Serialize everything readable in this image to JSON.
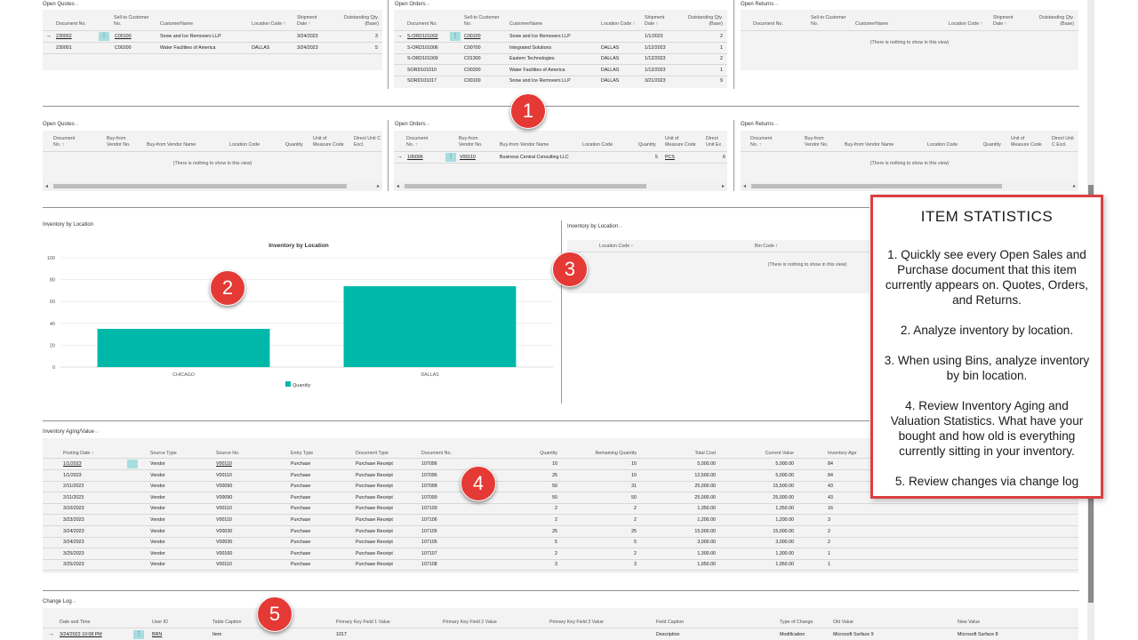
{
  "open_quotes_sales": {
    "title": "Open Quotes",
    "headers": [
      "Document No.",
      "Sell-to Customer No.",
      "CustomerName",
      "Location Code ↑",
      "Shipment Date ↑",
      "Outstanding Qty. (Base)"
    ],
    "rows": [
      [
        "230002",
        "C00100",
        "Snow and Ice Removers LLP",
        "",
        "3/24/2023",
        "3"
      ],
      [
        "230001",
        "C00200",
        "Water Facilities of America",
        "DALLAS",
        "3/24/2023",
        "5"
      ]
    ]
  },
  "open_orders_sales": {
    "title": "Open Orders",
    "headers": [
      "Document No.",
      "Sell-to Customer No.",
      "CustomerName",
      "Location Code ↑",
      "Shipment Date ↑",
      "Outstanding Qty. (Base)"
    ],
    "rows": [
      [
        "S-ORD101002",
        "C00100",
        "Snow and Ice Removers LLP",
        "",
        "1/1/2023",
        "2"
      ],
      [
        "S-ORD101006",
        "C00700",
        "Integrated Solutions",
        "DALLAS",
        "1/12/2023",
        "1"
      ],
      [
        "S-ORD101009",
        "C01300",
        "Eastern Technologies",
        "DALLAS",
        "1/12/2023",
        "2"
      ],
      [
        "SORD101010",
        "C00200",
        "Water Facilities of America",
        "DALLAS",
        "1/12/2023",
        "1"
      ],
      [
        "SORD101017",
        "C00100",
        "Snow and Ice Removers LLP",
        "DALLAS",
        "3/21/2023",
        "9"
      ]
    ]
  },
  "open_returns_sales": {
    "title": "Open Returns",
    "headers": [
      "Document No.",
      "Sell-to Customer No.",
      "CustomerName",
      "Location Code ↑",
      "Shipment Date ↑",
      "Outstanding Qty. (Base)"
    ],
    "empty": "(There is nothing to show in this view)"
  },
  "open_quotes_purch": {
    "title": "Open Quotes",
    "headers": [
      "Document No. ↑",
      "Buy-from Vendor No.",
      "Buy-from Vendor Name",
      "Location Code",
      "Quantity",
      "Unit of Measure Code",
      "Direct Unit C Excl."
    ],
    "empty": "(There is nothing to show in this view)"
  },
  "open_orders_purch": {
    "title": "Open Orders",
    "headers": [
      "Document No. ↑",
      "Buy-from Vendor No.",
      "Buy-from Vendor Name",
      "Location Code",
      "Quantity",
      "Unit of Measure Code",
      "Direct Unit Ex"
    ],
    "rows": [
      [
        "106006",
        "V00110",
        "Business Central Consulting LLC",
        "",
        "5",
        "PCS",
        "6"
      ]
    ]
  },
  "open_returns_purch": {
    "title": "Open Returns",
    "headers": [
      "Document No. ↑",
      "Buy-from Vendor No.",
      "Buy-from Vendor Name",
      "Location Code",
      "Quantity",
      "Unit of Measure Code",
      "Direct Unit C Excl."
    ],
    "empty": "(There is nothing to show in this view)"
  },
  "inventory_chart": {
    "section_title": "Inventory by Location",
    "legend_label": "Quantity"
  },
  "chart_data": {
    "type": "bar",
    "title": "Inventory by Location",
    "categories": [
      "CHICAGO",
      "DALLAS"
    ],
    "series": [
      {
        "name": "Quantity",
        "values": [
          35,
          74
        ]
      }
    ],
    "ylim": [
      0,
      100
    ],
    "yticks": [
      0,
      20,
      40,
      60,
      80,
      100
    ],
    "color": "#00b8a9",
    "legend_position": "bottom"
  },
  "bin_location": {
    "title": "Inventory by Location",
    "headers": [
      "Location Code ↑",
      "Bin Code ↑"
    ],
    "empty": "(There is nothing to show in this view)"
  },
  "aging": {
    "title": "Inventory Aging/Value",
    "headers": [
      "Posting Date ↑",
      "Source Type",
      "Source No.",
      "Entry Type",
      "Document Type",
      "Document No.",
      "Quantity",
      "Remaining Quantity",
      "Total Cost",
      "Current Value",
      "Inventory Age"
    ],
    "rows": [
      [
        "1/1/2023",
        "Vendor",
        "V00110",
        "Purchase",
        "Purchase Receipt",
        "107096",
        "10",
        "10",
        "5,000.00",
        "5,000.00",
        "84"
      ],
      [
        "1/1/2023",
        "Vendor",
        "V00110",
        "Purchase",
        "Purchase Receipt",
        "107096",
        "25",
        "10",
        "12,500.00",
        "5,000.00",
        "84"
      ],
      [
        "2/11/2023",
        "Vendor",
        "V00090",
        "Purchase",
        "Purchase Receipt",
        "107098",
        "50",
        "31",
        "25,000.00",
        "15,500.00",
        "43"
      ],
      [
        "2/11/2023",
        "Vendor",
        "V00090",
        "Purchase",
        "Purchase Receipt",
        "107099",
        "50",
        "50",
        "25,000.00",
        "25,000.00",
        "43"
      ],
      [
        "3/10/2023",
        "Vendor",
        "V00110",
        "Purchase",
        "Purchase Receipt",
        "107109",
        "2",
        "2",
        "1,350.00",
        "1,350.00",
        "16"
      ],
      [
        "3/23/2023",
        "Vendor",
        "V00110",
        "Purchase",
        "Purchase Receipt",
        "107106",
        "2",
        "2",
        "1,200.00",
        "1,200.00",
        "3"
      ],
      [
        "3/24/2023",
        "Vendor",
        "V00030",
        "Purchase",
        "Purchase Receipt",
        "107105",
        "25",
        "25",
        "15,000.00",
        "15,000.00",
        "2"
      ],
      [
        "3/24/2023",
        "Vendor",
        "V00030",
        "Purchase",
        "Purchase Receipt",
        "107105",
        "5",
        "5",
        "3,000.00",
        "3,000.00",
        "2"
      ],
      [
        "3/25/2023",
        "Vendor",
        "V00160",
        "Purchase",
        "Purchase Receipt",
        "107107",
        "2",
        "2",
        "1,300.00",
        "1,300.00",
        "1"
      ],
      [
        "3/25/2023",
        "Vendor",
        "V00110",
        "Purchase",
        "Purchase Receipt",
        "107108",
        "3",
        "3",
        "1,950.00",
        "1,950.00",
        "1"
      ]
    ]
  },
  "change_log": {
    "title": "Change Log",
    "headers": [
      "Date and Time",
      "User ID",
      "Table Caption",
      "Primary Key Field 1 Value",
      "Primary Key Field 2 Value",
      "Primary Key Field 3 Value",
      "Field Caption",
      "Type of Change",
      "Old Value",
      "New Value"
    ],
    "rows": [
      [
        "3/24/2023 10:08 PM",
        "BRN",
        "Item",
        "1017",
        "",
        "",
        "Description",
        "Modification",
        "Microsoft Surface 9",
        "Microsoft Surface 8"
      ]
    ]
  },
  "badges": [
    "1",
    "2",
    "3",
    "4",
    "5"
  ],
  "item_statistics": {
    "title": "ITEM STATISTICS",
    "points": [
      "1. Quickly see every Open Sales and Purchase document that this item currently appears on. Quotes, Orders, and Returns.",
      "2. Analyze inventory by location.",
      "3. When using Bins, analyze inventory by bin location.",
      "4. Review Inventory Aging and Valuation Statistics. What have your bought and how old is everything currently sitting in your inventory.",
      "5. Review changes via change log"
    ]
  },
  "colors": {
    "accent": "#00b8a9",
    "badge": "#e53935",
    "callout_border": "#d94040"
  }
}
